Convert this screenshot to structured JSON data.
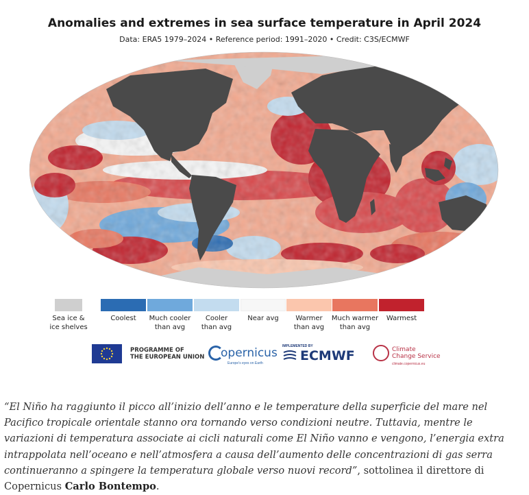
{
  "map": {
    "title": "Anomalies and extremes in sea surface temperature in April 2024",
    "subtitle": "Data: ERA5 1979–2024 • Reference period: 1991–2020 • Credit: C3S/ECMWF",
    "colors": {
      "land": "#4a4a4a",
      "ice": "#cfcfcf",
      "coolest": "#2b6cb3",
      "much_cooler": "#6fa9dc",
      "cooler": "#c3dcef",
      "near": "#f7f7f7",
      "warmer": "#fbc6ad",
      "much_warmer": "#e8765f",
      "warmest": "#c1222d"
    }
  },
  "legend": {
    "items": [
      {
        "key": "ice",
        "label": "Sea ice &\nice shelves",
        "color": "#cfcfcf"
      },
      {
        "key": "coolest",
        "label": "Coolest",
        "color": "#2b6cb3"
      },
      {
        "key": "much_cooler",
        "label": "Much cooler\nthan avg",
        "color": "#6fa9dc"
      },
      {
        "key": "cooler",
        "label": "Cooler\nthan avg",
        "color": "#c3dcef"
      },
      {
        "key": "near",
        "label": "Near avg",
        "color": "#f7f7f7"
      },
      {
        "key": "warmer",
        "label": "Warmer\nthan avg",
        "color": "#fbc6ad"
      },
      {
        "key": "much_warmer",
        "label": "Much warmer\nthan avg",
        "color": "#e8765f"
      },
      {
        "key": "warmest",
        "label": "Warmest",
        "color": "#c1222d"
      }
    ]
  },
  "logos": {
    "eu_line1": "PROGRAMME OF",
    "eu_line2": "THE EUROPEAN UNION",
    "copernicus": "opernicus",
    "copernicus_sub": "Europe's eyes on Earth",
    "ecmwf_small": "IMPLEMENTED BY",
    "ecmwf": "ECMWF",
    "c3s_line1": "Climate",
    "c3s_line2": "Change Service",
    "c3s_sub": "climate.copernicus.eu"
  },
  "quote": {
    "text": "“El Niño ha raggiunto il picco all’inizio dell’anno e le temperature della superficie del mare nel Pacifico tropicale orientale stanno ora tornando verso condizioni neutre. Tuttavia, mentre le variazioni di temperatura associate ai cicli naturali come El Niño vanno e vengono, l’energia extra intrappolata nell’oceano e nell’atmosfera a causa dell’aumento delle concentrazioni di gas serra continueranno a spingere la temperatura globale verso nuovi record”",
    "after": ", sottolinea il direttore di Copernicus ",
    "name": "Carlo Bontempo",
    "end": "."
  }
}
